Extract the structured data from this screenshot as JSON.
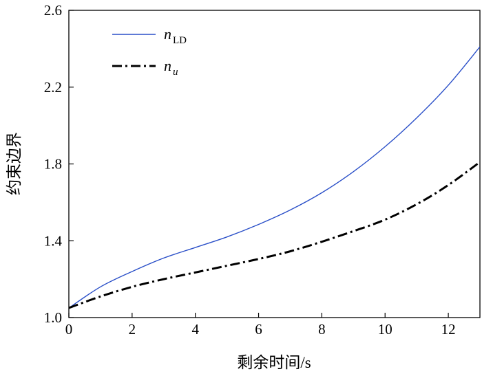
{
  "chart_data": {
    "type": "line",
    "xlabel": "剩余时间/s",
    "ylabel": "约束边界",
    "xlim": [
      0,
      13
    ],
    "ylim": [
      1.0,
      2.6
    ],
    "xticks": [
      "0",
      "2",
      "4",
      "6",
      "8",
      "10",
      "12"
    ],
    "yticks": [
      "1.0",
      "1.4",
      "1.8",
      "2.2",
      "2.6"
    ],
    "grid": false,
    "legend_position": "top-left",
    "series": [
      {
        "name_main": "n",
        "name_sub": "LD",
        "color": "#2a4fc8",
        "style": "solid",
        "x": [
          0,
          1,
          2,
          3,
          4,
          5,
          6,
          7,
          8,
          9,
          10,
          11,
          12,
          13
        ],
        "y": [
          1.05,
          1.16,
          1.24,
          1.31,
          1.365,
          1.42,
          1.485,
          1.56,
          1.65,
          1.76,
          1.89,
          2.04,
          2.21,
          2.41
        ]
      },
      {
        "name_main": "n",
        "name_sub": "u",
        "color": "#000000",
        "style": "dashdot",
        "x": [
          0,
          1,
          2,
          3,
          4,
          5,
          6,
          7,
          8,
          9,
          10,
          11,
          12,
          13
        ],
        "y": [
          1.05,
          1.11,
          1.16,
          1.2,
          1.235,
          1.27,
          1.305,
          1.345,
          1.395,
          1.45,
          1.51,
          1.59,
          1.69,
          1.81
        ]
      }
    ]
  }
}
